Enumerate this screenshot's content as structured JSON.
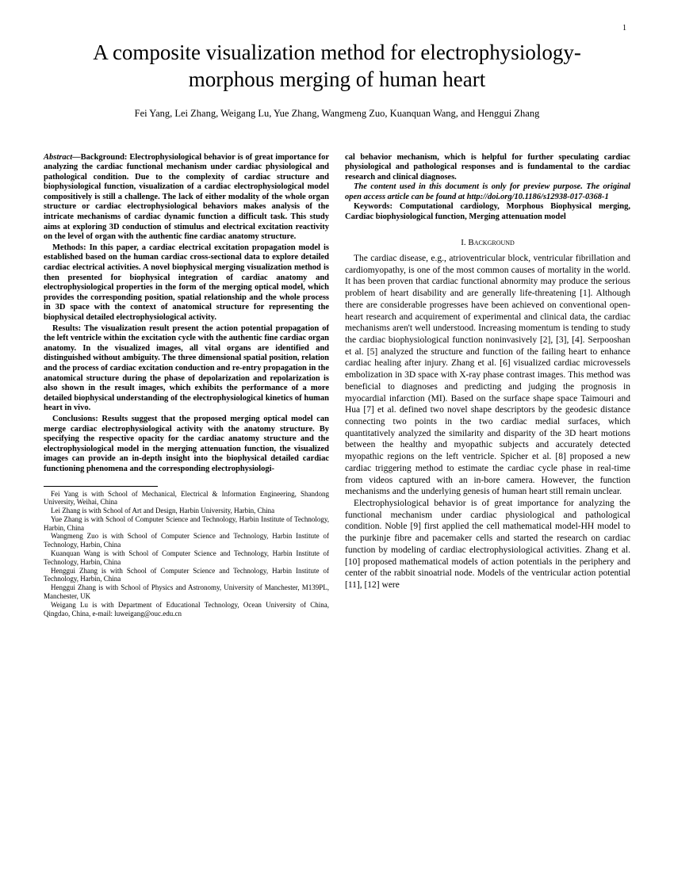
{
  "page_number": "1",
  "title": "A composite visualization method for electrophysiology-morphous merging of human heart",
  "authors": "Fei Yang, Lei Zhang, Weigang Lu, Yue Zhang, Wangmeng Zuo, Kuanquan Wang, and Henggui Zhang",
  "abstract": {
    "label": "Abstract—",
    "background_label": "Background: ",
    "background": "Electrophysiological behavior is of great importance for analyzing the cardiac functional mechanism under cardiac physiological and pathological condition. Due to the complexity of cardiac structure and biophysiological function, visualization of a cardiac electrophysiological model compositively is still a challenge. The lack of either modality of the whole organ structure or cardiac electrophysiological behaviors makes analysis of the intricate mechanisms of cardiac dynamic function a difficult task. This study aims at exploring 3D conduction of stimulus and electrical excitation reactivity on the level of organ with the authentic fine cardiac anatomy structure.",
    "methods_label": "Methods: ",
    "methods": "In this paper, a cardiac electrical excitation propagation model is established based on the human cardiac cross-sectional data to explore detailed cardiac electrical activities. A novel biophysical merging visualization method is then presented for biophysical integration of cardiac anatomy and electrophysiological properties in the form of the merging optical model, which provides the corresponding position, spatial relationship and the whole process in 3D space with the context of anatomical structure for representing the biophysical detailed electrophysiological activity.",
    "results_label": "Results: ",
    "results": "The visualization result present the action potential propagation of the left ventricle within the excitation cycle with the authentic fine cardiac organ anatomy. In the visualized images, all vital organs are identified and distinguished without ambiguity. The three dimensional spatial position, relation and the process of cardiac excitation conduction and re-entry propagation in the anatomical structure during the phase of depolarization and repolarization is also shown in the result images, which exhibits the performance of a more detailed biophysical understanding of the electrophysiological kinetics of human heart in vivo.",
    "conclusions_label": "Conclusions: ",
    "conclusions": "Results suggest that the proposed merging optical model can merge cardiac electrophysiological activity with the anatomy structure. By specifying the respective opacity for the cardiac anatomy structure and the electrophysiological model in the merging attenuation function, the visualized images can provide an in-depth insight into the biophysical detailed cardiac functioning phenomena and the corresponding electrophysiologi-",
    "conclusions_cont": "cal behavior mechanism, which is helpful for further speculating cardiac physiological and pathological responses and is fundamental to the cardiac research and clinical diagnoses."
  },
  "preview_note": "The content used in this document is only for preview purpose. The original open access article can be found at http://doi.org/10.1186/s12938-017-0368-1",
  "keywords": "Keywords: Computational cardiology, Morphous Biophysical merging, Cardiac biophysiological function, Merging attenuation model",
  "section1": {
    "heading": "I.   Background",
    "para1": "The cardiac disease, e.g., atrioventricular block, ventricular fibrillation and cardiomyopathy, is one of the most common causes of mortality in the world. It has been proven that cardiac functional abnormity may produce the serious problem of heart disability and are generally life-threatening [1]. Although there are considerable progresses have been achieved on conventional open-heart research and acquirement of experimental and clinical data, the cardiac mechanisms aren't well understood. Increasing momentum is tending to study the cardiac biophysiological function noninvasively [2], [3], [4]. Serpooshan et al. [5] analyzed the structure and function of the failing heart to enhance cardiac healing after injury. Zhang et al. [6] visualized cardiac microvessels embolization in 3D space with X-ray phase contrast images. This method was beneficial to diagnoses and predicting and judging the prognosis in myocardial infarction (MI). Based on the surface shape space Taimouri and Hua [7] et al. defined two novel shape descriptors by the geodesic distance connecting two points in the two cardiac medial surfaces, which quantitatively analyzed the similarity and disparity of the 3D heart motions between the healthy and myopathic subjects and accurately detected myopathic regions on the left ventricle. Spicher et al. [8] proposed a new cardiac triggering method to estimate the cardiac cycle phase in real-time from videos captured with an in-bore camera. However, the function mechanisms and the underlying genesis of human heart still remain unclear.",
    "para2": "Electrophysiological behavior is of great importance for analyzing the functional mechanism under cardiac physiological and pathological condition. Noble [9] first applied the cell mathematical model-HH model to the purkinje fibre and pacemaker cells and started the research on cardiac function by modeling of cardiac electrophysiological activities. Zhang et al. [10] proposed mathematical models of action potentials in the periphery and center of the rabbit sinoatrial node. Models of the ventricular action potential [11], [12] were"
  },
  "footnotes": {
    "f1": "Fei Yang is with School of Mechanical, Electrical & Information Engineering, Shandong University, Weihai, China",
    "f2": "Lei Zhang is with School of Art and Design, Harbin University, Harbin, China",
    "f3": "Yue Zhang is with School of Computer Science and Technology, Harbin Institute of Technology, Harbin, China",
    "f4": "Wangmeng Zuo is with School of Computer Science and Technology, Harbin Institute of Technology, Harbin, China",
    "f5": "Kuanquan Wang is with School of Computer Science and Technology, Harbin Institute of Technology, Harbin, China",
    "f6": "Henggui Zhang is with School of Computer Science and Technology, Harbin Institute of Technology, Harbin, China",
    "f7": "Henggui Zhang is with School of Physics and Astronomy, University of Manchester, M139PL, Manchester, UK",
    "f8": "Weigang Lu is with Department of Educational Technology, Ocean University of China, Qingdao, China, e-mail: luweigang@ouc.edu.cn"
  }
}
